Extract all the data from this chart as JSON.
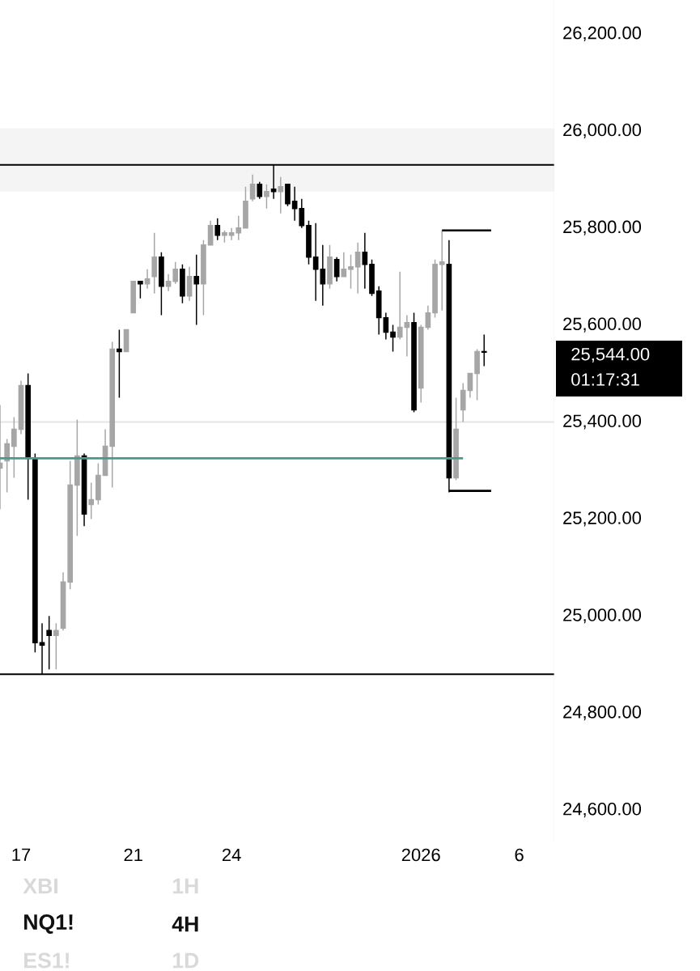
{
  "chart_data": {
    "type": "candlestick",
    "categories": [
      null,
      null,
      null,
      "17",
      null,
      null,
      null,
      null,
      null,
      null,
      null,
      null,
      null,
      null,
      null,
      null,
      null,
      null,
      null,
      "21",
      null,
      null,
      null,
      null,
      null,
      null,
      null,
      null,
      null,
      null,
      null,
      null,
      null,
      "24",
      null,
      null,
      null,
      null,
      null,
      null,
      null,
      null,
      null,
      null,
      null,
      null,
      null,
      null,
      null,
      null,
      null,
      null,
      null,
      null,
      null,
      null,
      null,
      null,
      null,
      null,
      "2026",
      null,
      null,
      null,
      null,
      null,
      null,
      null,
      null,
      null,
      null,
      null,
      null,
      null,
      "6"
    ],
    "ohlc": [
      [
        25305,
        25435,
        25220,
        25315
      ],
      [
        25320,
        25365,
        25255,
        25355
      ],
      [
        25350,
        25410,
        25285,
        25385
      ],
      [
        25385,
        25485,
        25375,
        25475
      ],
      [
        25475,
        25500,
        25240,
        25325
      ],
      [
        25325,
        25335,
        24925,
        24945
      ],
      [
        24945,
        24985,
        24880,
        24940
      ],
      [
        24970,
        25000,
        24890,
        24960
      ],
      [
        24960,
        24985,
        24890,
        24970
      ],
      [
        24975,
        25090,
        24970,
        25070
      ],
      [
        25070,
        25320,
        25055,
        25270
      ],
      [
        25270,
        25405,
        25165,
        25330
      ],
      [
        25330,
        25335,
        25185,
        25210
      ],
      [
        25230,
        25275,
        25200,
        25240
      ],
      [
        25240,
        25315,
        25230,
        25290
      ],
      [
        25290,
        25385,
        25290,
        25350
      ],
      [
        25350,
        25565,
        25265,
        25550
      ],
      [
        25550,
        25590,
        25450,
        25545
      ],
      [
        25545,
        25590,
        25545,
        25590
      ],
      [
        25625,
        25690,
        25625,
        25690
      ],
      [
        25690,
        25690,
        25655,
        25685
      ],
      [
        25685,
        25715,
        25675,
        25695
      ],
      [
        25700,
        25790,
        25665,
        25740
      ],
      [
        25740,
        25750,
        25620,
        25680
      ],
      [
        25680,
        25705,
        25670,
        25690
      ],
      [
        25690,
        25730,
        25685,
        25715
      ],
      [
        25715,
        25725,
        25645,
        25660
      ],
      [
        25660,
        25720,
        25650,
        25700
      ],
      [
        25700,
        25745,
        25600,
        25685
      ],
      [
        25685,
        25775,
        25620,
        25765
      ],
      [
        25765,
        25815,
        25765,
        25805
      ],
      [
        25805,
        25820,
        25775,
        25785
      ],
      [
        25785,
        25795,
        25770,
        25790
      ],
      [
        25785,
        25800,
        25775,
        25790
      ],
      [
        25790,
        25825,
        25775,
        25800
      ],
      [
        25800,
        25885,
        25800,
        25855
      ],
      [
        25860,
        25910,
        25855,
        25890
      ],
      [
        25890,
        25895,
        25860,
        25865
      ],
      [
        25865,
        25890,
        25840,
        25875
      ],
      [
        25880,
        25930,
        25860,
        25875
      ],
      [
        25875,
        25905,
        25830,
        25885
      ],
      [
        25890,
        25890,
        25845,
        25850
      ],
      [
        25855,
        25885,
        25815,
        25840
      ],
      [
        25840,
        25860,
        25800,
        25805
      ],
      [
        25805,
        25815,
        25725,
        25740
      ],
      [
        25740,
        25810,
        25650,
        25715
      ],
      [
        25715,
        25765,
        25640,
        25685
      ],
      [
        25685,
        25765,
        25675,
        25740
      ],
      [
        25735,
        25740,
        25690,
        25700
      ],
      [
        25700,
        25750,
        25700,
        25715
      ],
      [
        25715,
        25745,
        25675,
        25720
      ],
      [
        25720,
        25770,
        25665,
        25750
      ],
      [
        25750,
        25790,
        25675,
        25725
      ],
      [
        25725,
        25735,
        25660,
        25665
      ],
      [
        25670,
        25680,
        25580,
        25615
      ],
      [
        25615,
        25625,
        25570,
        25585
      ],
      [
        25585,
        25600,
        25545,
        25575
      ],
      [
        25575,
        25710,
        25570,
        25595
      ],
      [
        25595,
        25620,
        25535,
        25605
      ],
      [
        25605,
        25625,
        25420,
        25425
      ],
      [
        25470,
        25600,
        25440,
        25595
      ],
      [
        25595,
        25640,
        25590,
        25625
      ],
      [
        25625,
        25735,
        25615,
        25725
      ],
      [
        25725,
        25795,
        25630,
        25730
      ],
      [
        25725,
        25775,
        25255,
        25285
      ],
      [
        25285,
        25450,
        25280,
        25385
      ],
      [
        25425,
        25480,
        25400,
        25465
      ],
      [
        25465,
        25500,
        25450,
        25500
      ],
      [
        25500,
        25550,
        25445,
        25545
      ],
      [
        25545,
        25580,
        25515,
        25544
      ],
      null,
      null,
      null,
      null,
      null
    ],
    "colors": [
      "#a6a6a6",
      "#a6a6a6",
      "#a6a6a6",
      "#a6a6a6",
      "#000000",
      "#000000",
      "#000000",
      "#000000",
      "#a6a6a6",
      "#a6a6a6",
      "#a6a6a6",
      "#a6a6a6",
      "#000000",
      "#a6a6a6",
      "#a6a6a6",
      "#a6a6a6",
      "#a6a6a6",
      "#000000",
      "#a6a6a6",
      "#a6a6a6",
      "#000000",
      "#a6a6a6",
      "#a6a6a6",
      "#000000",
      "#a6a6a6",
      "#a6a6a6",
      "#000000",
      "#a6a6a6",
      "#000000",
      "#a6a6a6",
      "#a6a6a6",
      "#000000",
      "#a6a6a6",
      "#a6a6a6",
      "#a6a6a6",
      "#a6a6a6",
      "#a6a6a6",
      "#000000",
      "#a6a6a6",
      "#000000",
      "#a6a6a6",
      "#000000",
      "#000000",
      "#000000",
      "#000000",
      "#000000",
      "#000000",
      "#a6a6a6",
      "#000000",
      "#a6a6a6",
      "#a6a6a6",
      "#a6a6a6",
      "#000000",
      "#000000",
      "#000000",
      "#000000",
      "#000000",
      "#a6a6a6",
      "#a6a6a6",
      "#000000",
      "#a6a6a6",
      "#a6a6a6",
      "#a6a6a6",
      "#a6a6a6",
      "#000000",
      "#a6a6a6",
      "#a6a6a6",
      "#a6a6a6",
      "#a6a6a6",
      "#000000",
      null,
      null,
      null,
      null,
      null
    ],
    "series": [
      {
        "type": "line",
        "color": "#4a9a8a",
        "values": [
          25325,
          25325,
          25325,
          25325,
          25325,
          25325,
          25325,
          25325,
          25325,
          25325,
          25325,
          25325,
          25325,
          25325,
          25325,
          25325,
          25325,
          25325,
          25325,
          25325,
          25325,
          25325,
          25325,
          25325,
          25325,
          25325,
          25325,
          25325,
          25325,
          25325,
          25325,
          25325,
          25325,
          25325,
          25325,
          25325,
          25325,
          25325,
          25325,
          25325,
          25325,
          25325,
          25325,
          25325,
          25325,
          25325,
          25325,
          25325,
          25325,
          25325,
          25325,
          25325,
          25325,
          25325,
          25325,
          25325,
          25325,
          25325,
          25325,
          25325,
          25325,
          25325,
          25325,
          25325,
          25325,
          25325,
          25325,
          null,
          null,
          null,
          null,
          null,
          null,
          null,
          null
        ]
      },
      {
        "type": "line",
        "color": "#000000",
        "values": [
          null,
          null,
          null,
          null,
          null,
          null,
          null,
          null,
          null,
          null,
          null,
          null,
          null,
          null,
          null,
          null,
          null,
          null,
          null,
          null,
          null,
          null,
          null,
          null,
          null,
          null,
          null,
          null,
          null,
          null,
          null,
          null,
          null,
          null,
          null,
          null,
          null,
          null,
          null,
          null,
          null,
          null,
          null,
          null,
          null,
          null,
          null,
          null,
          null,
          null,
          null,
          null,
          null,
          null,
          null,
          null,
          null,
          null,
          null,
          null,
          null,
          null,
          null,
          25795,
          25795,
          25795,
          25795,
          25795,
          25795,
          25795,
          25795,
          null,
          null,
          null,
          null
        ]
      },
      {
        "type": "line",
        "color": "#000000",
        "values": [
          null,
          null,
          null,
          null,
          null,
          null,
          null,
          null,
          null,
          null,
          null,
          null,
          null,
          null,
          null,
          null,
          null,
          null,
          null,
          null,
          null,
          null,
          null,
          null,
          null,
          null,
          null,
          null,
          null,
          null,
          null,
          null,
          null,
          null,
          null,
          null,
          null,
          null,
          null,
          null,
          null,
          null,
          null,
          null,
          null,
          null,
          null,
          null,
          null,
          null,
          null,
          null,
          null,
          null,
          null,
          null,
          null,
          null,
          null,
          null,
          null,
          null,
          null,
          null,
          25258,
          25258,
          25258,
          25258,
          25258,
          25258,
          25258,
          null,
          null,
          null,
          null
        ]
      }
    ],
    "ref_lines": [
      {
        "axis": "y",
        "value": 25930,
        "color": "#000000"
      },
      {
        "axis": "y",
        "value": 24880,
        "color": "#000000"
      },
      {
        "axis": "y",
        "value": 25400,
        "color": "#e3e3ea"
      }
    ],
    "bands": [
      {
        "axis": "y",
        "from": 25875,
        "to": 26005,
        "color": "#f4f4f4"
      }
    ],
    "ylim": [
      24535,
      26270
    ],
    "yticks": [
      {
        "value": 24600,
        "label": "24,600.00"
      },
      {
        "value": 24800,
        "label": "24,800.00"
      },
      {
        "value": 25000,
        "label": "25,000.00"
      },
      {
        "value": 25200,
        "label": "25,200.00"
      },
      {
        "value": 25400,
        "label": "25,400.00"
      },
      {
        "value": 25600,
        "label": "25,600.00"
      },
      {
        "value": 25800,
        "label": "25,800.00"
      },
      {
        "value": 26000,
        "label": "26,000.00"
      },
      {
        "value": 26200,
        "label": "26,200.00"
      }
    ],
    "annotations": [
      "25,544.00",
      "01:17:31",
      "XBI",
      "NQ1!",
      "ES1!",
      "1H",
      "4H",
      "1D"
    ]
  }
}
